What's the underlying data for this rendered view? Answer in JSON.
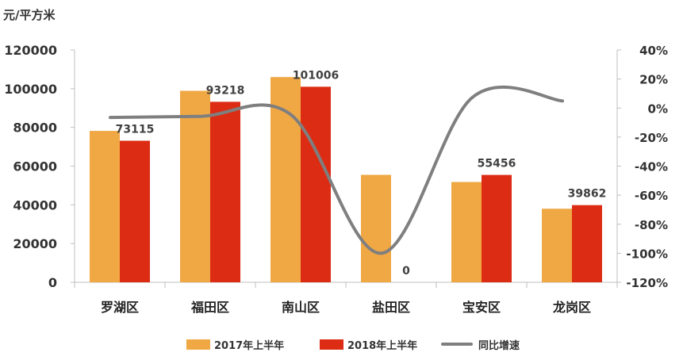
{
  "chart_data": {
    "type": "bar",
    "unit_label": "元/平方米",
    "categories": [
      "罗湖区",
      "福田区",
      "南山区",
      "盐田区",
      "宝安区",
      "龙岗区"
    ],
    "series": [
      {
        "name": "2017年上半年",
        "kind": "bar",
        "axis": "left",
        "color": "#F0A845",
        "values": [
          78200,
          98900,
          106000,
          55500,
          51800,
          38000
        ]
      },
      {
        "name": "2018年上半年",
        "kind": "bar",
        "axis": "left",
        "color": "#DC2C14",
        "values": [
          73115,
          93218,
          101006,
          0,
          55456,
          39862
        ]
      },
      {
        "name": "同比增速",
        "kind": "line",
        "axis": "right",
        "color": "#7F7F7F",
        "values": [
          -6.5,
          -5.7,
          -4.7,
          -100,
          7.1,
          4.9
        ]
      }
    ],
    "data_labels": [
      "73115",
      "93218",
      "101006",
      "0",
      "55456",
      "39862"
    ],
    "left_axis": {
      "range": [
        0,
        120000
      ],
      "ticks": [
        "0",
        "20000",
        "40000",
        "60000",
        "80000",
        "100000",
        "120000"
      ]
    },
    "right_axis": {
      "range": [
        -120,
        40
      ],
      "ticks": [
        "-120%",
        "-100%",
        "-80%",
        "-60%",
        "-40%",
        "-20%",
        "0%",
        "20%",
        "40%"
      ]
    },
    "grid": false,
    "legend_position": "bottom"
  }
}
